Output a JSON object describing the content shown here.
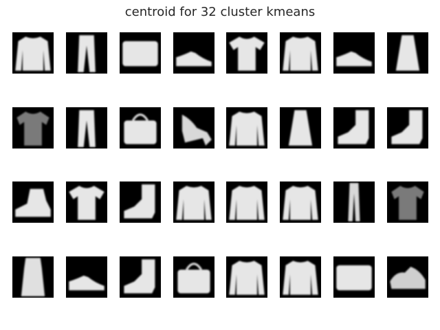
{
  "title": "centroid for 32 cluster kmeans",
  "colors": {
    "background": "#ffffff",
    "tile": "#000000",
    "shape": "#e8e8e8"
  },
  "centroids": [
    "long-sleeve-top",
    "trousers",
    "bag",
    "sneaker",
    "tshirt",
    "long-sleeve-top",
    "sneaker",
    "dress",
    "tshirt-dark",
    "trousers",
    "handbag",
    "sandal-heel",
    "long-sleeve-top",
    "dress",
    "ankle-boot",
    "ankle-boot",
    "ankle-boot-low",
    "tshirt",
    "ankle-boot",
    "long-sleeve-top",
    "long-sleeve-top",
    "long-sleeve-top",
    "trousers-thin",
    "tshirt-dark",
    "dress-long",
    "sneaker",
    "ankle-boot",
    "handbag",
    "long-sleeve-top",
    "long-sleeve-top",
    "bag",
    "sandal"
  ]
}
